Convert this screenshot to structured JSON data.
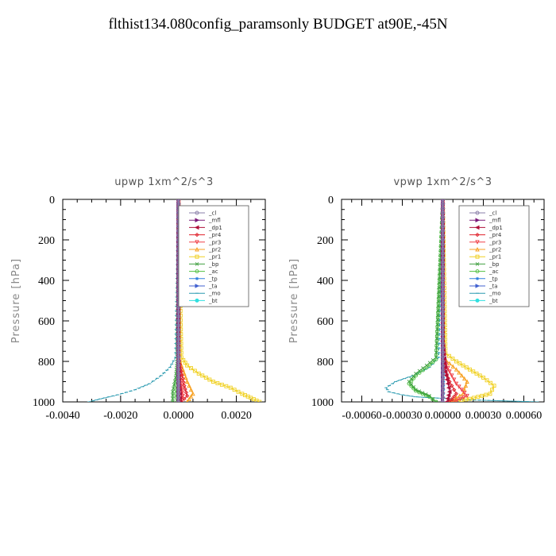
{
  "page": {
    "title": "flthist134.080config_paramsonly  BUDGET at90E,-45N"
  },
  "legend_entries": [
    {
      "name": "_cl",
      "color": "#8a7fa8",
      "marker": "circle"
    },
    {
      "name": "_mfl",
      "color": "#7a1a7a",
      "marker": "triangle-right"
    },
    {
      "name": "_dp1",
      "color": "#b0103a",
      "marker": "triangle-left"
    },
    {
      "name": "_pr4",
      "color": "#e0202a",
      "marker": "diamond"
    },
    {
      "name": "_pr3",
      "color": "#f04048",
      "marker": "triangle-down"
    },
    {
      "name": "_pr2",
      "color": "#f7a020",
      "marker": "triangle-up"
    },
    {
      "name": "_pr1",
      "color": "#f0d020",
      "marker": "square"
    },
    {
      "name": "_bp",
      "color": "#40a040",
      "marker": "x"
    },
    {
      "name": "_ac",
      "color": "#50c040",
      "marker": "circle"
    },
    {
      "name": "_tp",
      "color": "#3080e0",
      "marker": "star"
    },
    {
      "name": "_ta",
      "color": "#4060d0",
      "marker": "triangle-right"
    },
    {
      "name": "_mo",
      "color": "#2a9ab0",
      "marker": "dash"
    },
    {
      "name": "_bt",
      "color": "#30e0e0",
      "marker": "circle-filled"
    }
  ],
  "chart_data": [
    {
      "type": "line",
      "title": "upwp   1xm^2/s^3",
      "ylabel": "Pressure [hPa]",
      "xlabel": "",
      "xlim": [
        -0.004,
        0.003
      ],
      "ylim": [
        1000,
        0
      ],
      "xticks": [
        -0.004,
        -0.002,
        0.0,
        0.002
      ],
      "xtick_labels": [
        "-0.0040",
        "-0.0020",
        "0.0000",
        "0.0020"
      ],
      "yticks": [
        0,
        200,
        400,
        600,
        800,
        1000
      ],
      "ytick_labels": [
        "0",
        "200",
        "400",
        "600",
        "800",
        "1000"
      ],
      "legend_position": "top-right",
      "series": [
        {
          "name": "_cl",
          "x": [
            0,
            0,
            0,
            0,
            0,
            0,
            0
          ],
          "y": [
            0,
            200,
            400,
            600,
            800,
            900,
            1000
          ]
        },
        {
          "name": "_mfl",
          "x": [
            0,
            0,
            0,
            0,
            0,
            0,
            0
          ],
          "y": [
            0,
            200,
            400,
            600,
            800,
            900,
            1000
          ]
        },
        {
          "name": "_dp1",
          "x": [
            0,
            0,
            0,
            2e-05,
            5e-05,
            5e-05
          ],
          "y": [
            0,
            400,
            800,
            900,
            960,
            1000
          ]
        },
        {
          "name": "_pr4",
          "x": [
            0,
            0,
            0.0001,
            0.0002,
            0.0003,
            0.0001
          ],
          "y": [
            0,
            780,
            850,
            920,
            970,
            1000
          ]
        },
        {
          "name": "_pr3",
          "x": [
            0,
            0,
            5e-05,
            0.0001,
            0.00015,
            5e-05
          ],
          "y": [
            0,
            780,
            850,
            920,
            970,
            1000
          ]
        },
        {
          "name": "_pr2",
          "x": [
            0,
            0,
            0.00015,
            0.0003,
            0.0005,
            0.0003
          ],
          "y": [
            0,
            780,
            840,
            900,
            960,
            1000
          ]
        },
        {
          "name": "_pr1",
          "x": [
            0,
            0.0001,
            0.0003,
            0.0007,
            0.0012,
            0.0018,
            0.0022,
            0.0025,
            0.0028
          ],
          "y": [
            0,
            780,
            820,
            860,
            900,
            930,
            960,
            980,
            1000
          ]
        },
        {
          "name": "_bp",
          "x": [
            0,
            -5e-05,
            -0.0001,
            -0.0002,
            -0.0002
          ],
          "y": [
            0,
            800,
            880,
            950,
            1000
          ]
        },
        {
          "name": "_ac",
          "x": [
            0,
            0,
            -5e-05,
            -0.0001,
            -5e-05
          ],
          "y": [
            0,
            820,
            900,
            960,
            1000
          ]
        },
        {
          "name": "_tp",
          "x": [
            0,
            0,
            0,
            0,
            0
          ],
          "y": [
            0,
            600,
            800,
            900,
            1000
          ]
        },
        {
          "name": "_ta",
          "x": [
            0,
            0,
            0,
            0,
            0
          ],
          "y": [
            0,
            600,
            800,
            900,
            1000
          ]
        },
        {
          "name": "_mo",
          "x": [
            0,
            -0.0001,
            -0.0003,
            -0.0006,
            -0.001,
            -0.0015,
            -0.0021,
            -0.0027,
            -0.0031
          ],
          "y": [
            0,
            780,
            830,
            870,
            910,
            940,
            965,
            985,
            1000
          ]
        },
        {
          "name": "_bt",
          "x": [
            0,
            0,
            0,
            0,
            0
          ],
          "y": [
            0,
            600,
            800,
            900,
            1000
          ]
        }
      ]
    },
    {
      "type": "line",
      "title": "vpwp   1xm^2/s^3",
      "ylabel": "Pressure [hPa]",
      "xlabel": "",
      "xlim": [
        -0.00075,
        0.00075
      ],
      "ylim": [
        1000,
        0
      ],
      "xticks": [
        -0.0006,
        -0.0003,
        0.0,
        0.0003,
        0.0006
      ],
      "xtick_labels": [
        "-0.00060",
        "-0.00030",
        "0.00000",
        "0.00030",
        "0.00060"
      ],
      "yticks": [
        0,
        200,
        400,
        600,
        800,
        1000
      ],
      "ytick_labels": [
        "0",
        "200",
        "400",
        "600",
        "800",
        "1000"
      ],
      "legend_position": "top-right",
      "series": [
        {
          "name": "_cl",
          "x": [
            0,
            0,
            0,
            0,
            0,
            0
          ],
          "y": [
            0,
            200,
            400,
            600,
            800,
            1000
          ]
        },
        {
          "name": "_mfl",
          "x": [
            0,
            0,
            0,
            0,
            0,
            0
          ],
          "y": [
            0,
            200,
            400,
            600,
            800,
            1000
          ]
        },
        {
          "name": "_dp1",
          "x": [
            0,
            0,
            2e-05,
            5e-05,
            3e-05
          ],
          "y": [
            0,
            700,
            850,
            950,
            1000
          ]
        },
        {
          "name": "_pr4",
          "x": [
            0,
            0,
            2e-05,
            5e-05,
            0.0001,
            5e-05
          ],
          "y": [
            0,
            780,
            850,
            900,
            960,
            1000
          ]
        },
        {
          "name": "_pr3",
          "x": [
            0,
            0,
            5e-05,
            0.0001,
            0.00018,
            8e-05
          ],
          "y": [
            0,
            780,
            850,
            910,
            970,
            1000
          ]
        },
        {
          "name": "_pr2",
          "x": [
            0,
            0,
            0.0001,
            0.00018,
            0.00015,
            5e-05
          ],
          "y": [
            0,
            780,
            840,
            900,
            960,
            1000
          ]
        },
        {
          "name": "_pr1",
          "x": [
            0,
            2e-05,
            0.0001,
            0.0002,
            0.0003,
            0.00038,
            0.00035,
            0.0002,
            5e-05
          ],
          "y": [
            0,
            760,
            800,
            840,
            880,
            920,
            960,
            985,
            1000
          ]
        },
        {
          "name": "_bp",
          "x": [
            0,
            -5e-05,
            -0.00012,
            -0.0002,
            -0.00025,
            -0.0002,
            -0.0001,
            -5e-05
          ],
          "y": [
            0,
            780,
            820,
            860,
            900,
            940,
            970,
            1000
          ]
        },
        {
          "name": "_ac",
          "x": [
            0,
            -5e-05,
            -0.00012,
            -0.0002,
            -0.00025,
            -0.0002,
            -0.0001,
            -5e-05
          ],
          "y": [
            0,
            790,
            830,
            870,
            910,
            945,
            975,
            1000
          ]
        },
        {
          "name": "_tp",
          "x": [
            0,
            0,
            0,
            0,
            0
          ],
          "y": [
            0,
            600,
            800,
            900,
            1000
          ]
        },
        {
          "name": "_ta",
          "x": [
            0,
            0,
            0,
            0,
            0
          ],
          "y": [
            0,
            600,
            800,
            900,
            1000
          ]
        },
        {
          "name": "_mo",
          "x": [
            0,
            -3e-05,
            -0.0001,
            -0.00022,
            -0.00035,
            -0.00042,
            -0.0004,
            -0.0003,
            -0.0002,
            0.0002,
            0.0007
          ],
          "y": [
            0,
            780,
            830,
            870,
            900,
            930,
            950,
            965,
            975,
            990,
            1000
          ]
        },
        {
          "name": "_bt",
          "x": [
            0,
            0,
            0,
            0,
            0
          ],
          "y": [
            0,
            600,
            800,
            900,
            1000
          ]
        }
      ]
    }
  ]
}
